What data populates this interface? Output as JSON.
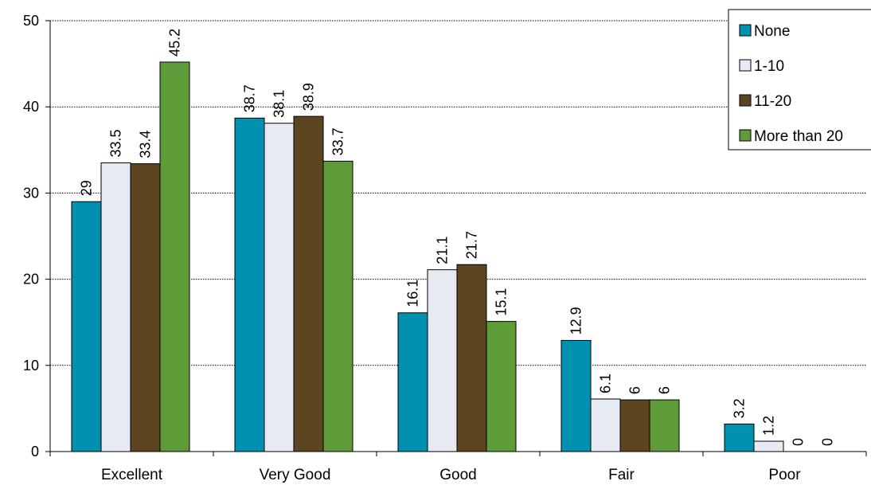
{
  "chart_data": {
    "type": "bar",
    "title": "",
    "xlabel": "",
    "ylabel": "",
    "categories": [
      "Excellent",
      "Very Good",
      "Good",
      "Fair",
      "Poor"
    ],
    "series": [
      {
        "name": "None",
        "color": "#0090B0",
        "values": [
          29,
          38.7,
          16.1,
          12.9,
          3.2
        ]
      },
      {
        "name": "1-10",
        "color": "#E6EAF3",
        "values": [
          33.5,
          38.1,
          21.1,
          6.1,
          1.2
        ]
      },
      {
        "name": "11-20",
        "color": "#5E4522",
        "values": [
          33.4,
          38.9,
          21.7,
          6,
          0
        ]
      },
      {
        "name": "More than 20",
        "color": "#5E9C39",
        "values": [
          45.2,
          33.7,
          15.1,
          6,
          0
        ]
      }
    ],
    "ylim": [
      0,
      50
    ],
    "yticks": [
      0,
      10,
      20,
      30,
      40,
      50
    ],
    "grid": true,
    "legend_position": "top-right"
  }
}
